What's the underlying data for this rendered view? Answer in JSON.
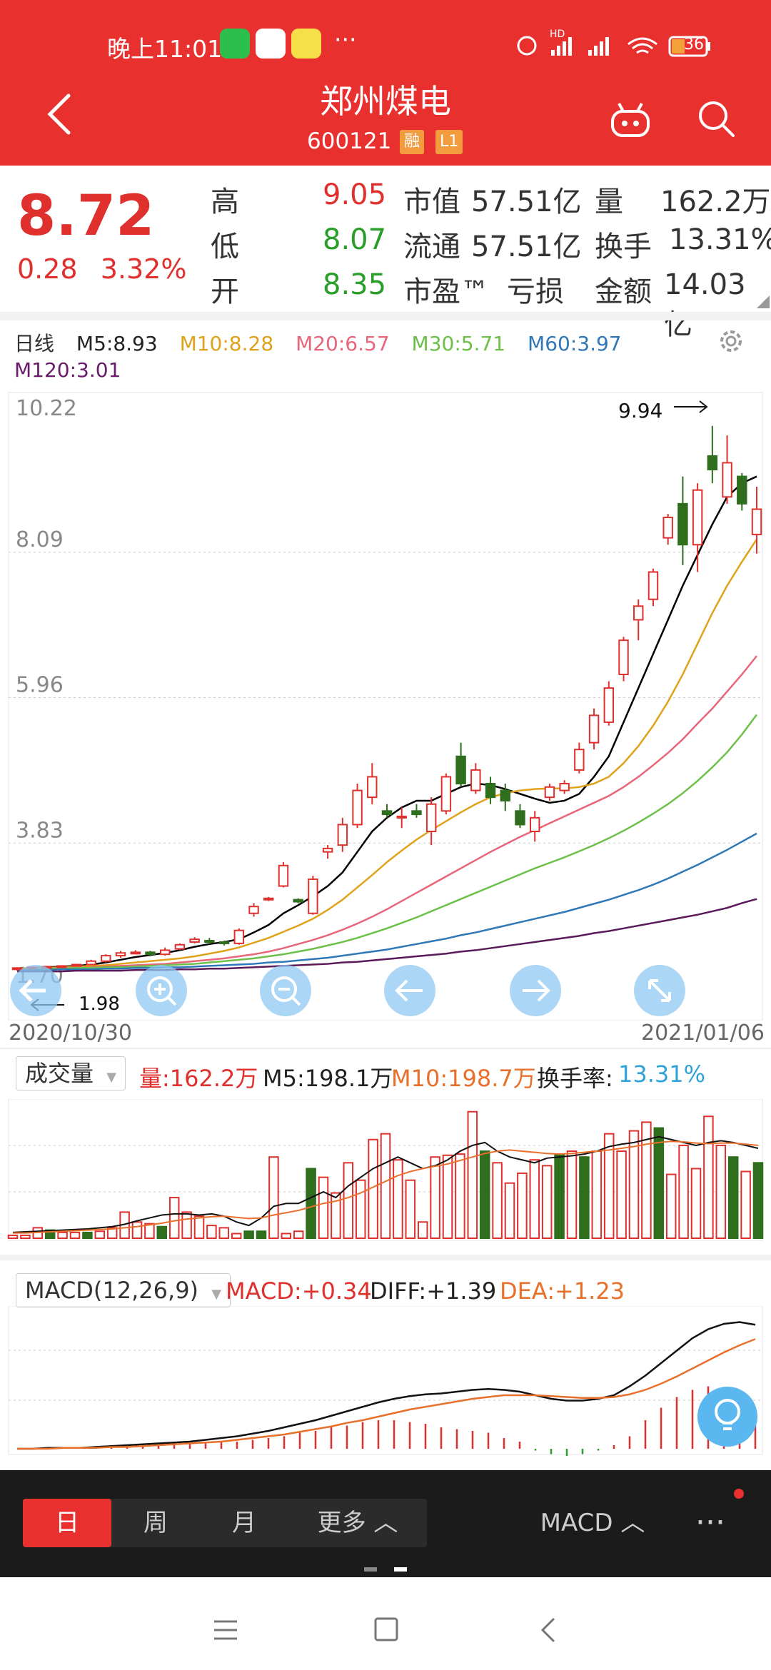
{
  "status": {
    "time": "晚上11:01",
    "dots": "···",
    "battery": "36",
    "net_label": "HD"
  },
  "header": {
    "title": "郑州煤电",
    "code": "600121",
    "tags": [
      "融",
      "L1"
    ]
  },
  "quote": {
    "price": "8.72",
    "change": "0.28",
    "change_pct": "3.32%",
    "rows": [
      {
        "l1": "高",
        "v1": "9.05",
        "c1": "red",
        "l2": "市值",
        "v2": "57.51亿",
        "l3": "量",
        "v3": "162.2万"
      },
      {
        "l1": "低",
        "v1": "8.07",
        "c1": "green",
        "l2": "流通",
        "v2": "57.51亿",
        "l3": "换手",
        "v3": "13.31%"
      },
      {
        "l1": "开",
        "v1": "8.35",
        "c1": "green",
        "l2": "市盈™",
        "v2": "亏损",
        "l3": "金额",
        "v3": "14.03亿"
      }
    ]
  },
  "ma_legend": {
    "period": "日线",
    "m5": "M5:8.93",
    "m10": "M10:8.28",
    "m20": "M20:6.57",
    "m30": "M30:5.71",
    "m60": "M60:3.97",
    "m120": "M120:3.01"
  },
  "colors": {
    "header": "#e8312f",
    "up": "#e0302d",
    "down": "#2e6e1d",
    "m5": "#000000",
    "m10": "#e0a21b",
    "m20": "#e8657a",
    "m30": "#6cc04a",
    "m60": "#2f78b8",
    "m120": "#5a1a5a"
  },
  "chart_data": [
    {
      "type": "candlestick",
      "y_ticks": [
        "10.22",
        "8.09",
        "5.96",
        "3.83",
        "1.70"
      ],
      "ylim": [
        1.7,
        10.22
      ],
      "annotations": {
        "high": "9.94",
        "low": "1.98"
      },
      "x_start": "2020/10/30",
      "x_end": "2021/01/06",
      "candles": [
        [
          1.98,
          2.0,
          1.96,
          2.01
        ],
        [
          2.0,
          2.01,
          1.99,
          2.02
        ],
        [
          2.01,
          2.02,
          2.0,
          2.03
        ],
        [
          2.02,
          2.03,
          2.01,
          2.04
        ],
        [
          2.03,
          2.05,
          2.02,
          2.06
        ],
        [
          2.05,
          2.1,
          2.04,
          2.12
        ],
        [
          2.1,
          2.18,
          2.08,
          2.2
        ],
        [
          2.18,
          2.22,
          2.15,
          2.25
        ],
        [
          2.22,
          2.23,
          2.2,
          2.26
        ],
        [
          2.23,
          2.2,
          2.17,
          2.25
        ],
        [
          2.2,
          2.26,
          2.18,
          2.3
        ],
        [
          2.28,
          2.34,
          2.26,
          2.36
        ],
        [
          2.38,
          2.42,
          2.36,
          2.45
        ],
        [
          2.4,
          2.38,
          2.35,
          2.44
        ],
        [
          2.38,
          2.36,
          2.33,
          2.4
        ],
        [
          2.36,
          2.55,
          2.34,
          2.58
        ],
        [
          2.8,
          2.9,
          2.75,
          2.95
        ],
        [
          3.0,
          3.02,
          2.98,
          3.04
        ],
        [
          3.2,
          3.5,
          3.18,
          3.55
        ],
        [
          3.0,
          2.97,
          2.95,
          3.02
        ],
        [
          2.8,
          3.3,
          2.78,
          3.35
        ],
        [
          3.7,
          3.75,
          3.6,
          3.8
        ],
        [
          3.8,
          4.1,
          3.7,
          4.2
        ],
        [
          4.1,
          4.6,
          4.05,
          4.7
        ],
        [
          4.5,
          4.8,
          4.4,
          5.0
        ],
        [
          4.3,
          4.25,
          4.2,
          4.4
        ],
        [
          4.2,
          4.22,
          4.05,
          4.35
        ],
        [
          4.3,
          4.25,
          4.2,
          4.4
        ],
        [
          4.0,
          4.4,
          3.8,
          4.5
        ],
        [
          4.3,
          4.8,
          4.25,
          4.85
        ],
        [
          5.1,
          4.7,
          4.65,
          5.3
        ],
        [
          4.6,
          4.9,
          4.55,
          5.0
        ],
        [
          4.7,
          4.5,
          4.4,
          4.8
        ],
        [
          4.6,
          4.45,
          4.3,
          4.7
        ],
        [
          4.3,
          4.1,
          4.05,
          4.4
        ],
        [
          4.0,
          4.2,
          3.85,
          4.3
        ],
        [
          4.5,
          4.65,
          4.45,
          4.7
        ],
        [
          4.6,
          4.7,
          4.55,
          4.75
        ],
        [
          4.9,
          5.2,
          4.85,
          5.3
        ],
        [
          5.3,
          5.7,
          5.2,
          5.8
        ],
        [
          5.6,
          6.1,
          5.55,
          6.2
        ],
        [
          6.3,
          6.8,
          6.2,
          6.85
        ],
        [
          7.1,
          7.3,
          6.8,
          7.4
        ],
        [
          7.4,
          7.8,
          7.3,
          7.85
        ],
        [
          8.3,
          8.6,
          8.2,
          8.65
        ],
        [
          8.8,
          8.2,
          7.9,
          9.2
        ],
        [
          8.2,
          9.0,
          7.8,
          9.1
        ],
        [
          9.5,
          9.3,
          9.1,
          9.94
        ],
        [
          8.9,
          9.4,
          8.8,
          9.8
        ],
        [
          9.2,
          8.8,
          8.7,
          9.25
        ],
        [
          8.35,
          8.72,
          8.07,
          9.05
        ]
      ],
      "ma": {
        "M5": [
          1.99,
          2.0,
          2.01,
          2.02,
          2.03,
          2.05,
          2.08,
          2.12,
          2.16,
          2.19,
          2.22,
          2.26,
          2.31,
          2.35,
          2.38,
          2.42,
          2.52,
          2.63,
          2.8,
          2.92,
          3.05,
          3.2,
          3.4,
          3.7,
          4.0,
          4.2,
          4.35,
          4.45,
          4.45,
          4.55,
          4.65,
          4.7,
          4.68,
          4.62,
          4.55,
          4.48,
          4.42,
          4.45,
          4.55,
          4.8,
          5.1,
          5.6,
          6.1,
          6.6,
          7.1,
          7.6,
          8.05,
          8.5,
          8.9,
          9.1,
          9.2
        ],
        "M10": [
          1.99,
          2.0,
          2.0,
          2.01,
          2.02,
          2.03,
          2.04,
          2.06,
          2.08,
          2.1,
          2.12,
          2.14,
          2.17,
          2.21,
          2.25,
          2.3,
          2.37,
          2.44,
          2.53,
          2.62,
          2.72,
          2.85,
          3.0,
          3.18,
          3.36,
          3.55,
          3.72,
          3.88,
          4.02,
          4.15,
          4.28,
          4.4,
          4.5,
          4.56,
          4.6,
          4.62,
          4.63,
          4.63,
          4.65,
          4.7,
          4.8,
          5.0,
          5.25,
          5.55,
          5.9,
          6.3,
          6.75,
          7.2,
          7.6,
          7.95,
          8.28
        ],
        "M20": [
          1.98,
          1.99,
          1.99,
          2.0,
          2.0,
          2.01,
          2.02,
          2.03,
          2.04,
          2.05,
          2.06,
          2.08,
          2.1,
          2.12,
          2.14,
          2.17,
          2.2,
          2.24,
          2.29,
          2.35,
          2.41,
          2.48,
          2.56,
          2.65,
          2.75,
          2.86,
          2.98,
          3.1,
          3.22,
          3.34,
          3.46,
          3.58,
          3.7,
          3.81,
          3.92,
          4.02,
          4.12,
          4.22,
          4.32,
          4.42,
          4.52,
          4.65,
          4.8,
          4.97,
          5.15,
          5.35,
          5.58,
          5.8,
          6.05,
          6.3,
          6.57
        ],
        "M30": [
          1.98,
          1.98,
          1.99,
          1.99,
          2.0,
          2.0,
          2.01,
          2.01,
          2.02,
          2.03,
          2.04,
          2.05,
          2.06,
          2.08,
          2.1,
          2.12,
          2.14,
          2.17,
          2.2,
          2.24,
          2.28,
          2.33,
          2.38,
          2.44,
          2.51,
          2.58,
          2.66,
          2.74,
          2.83,
          2.92,
          3.01,
          3.1,
          3.19,
          3.28,
          3.37,
          3.46,
          3.54,
          3.62,
          3.71,
          3.8,
          3.9,
          4.01,
          4.13,
          4.26,
          4.4,
          4.56,
          4.74,
          4.94,
          5.16,
          5.42,
          5.71
        ],
        "M60": [
          1.97,
          1.97,
          1.97,
          1.98,
          1.98,
          1.98,
          1.99,
          1.99,
          2.0,
          2.0,
          2.01,
          2.01,
          2.02,
          2.03,
          2.04,
          2.05,
          2.06,
          2.08,
          2.09,
          2.11,
          2.13,
          2.15,
          2.18,
          2.21,
          2.24,
          2.27,
          2.31,
          2.35,
          2.39,
          2.43,
          2.48,
          2.52,
          2.57,
          2.62,
          2.67,
          2.72,
          2.77,
          2.82,
          2.88,
          2.94,
          3.0,
          3.07,
          3.14,
          3.22,
          3.31,
          3.41,
          3.51,
          3.62,
          3.73,
          3.85,
          3.97
        ],
        "M120": [
          1.95,
          1.95,
          1.95,
          1.95,
          1.96,
          1.96,
          1.96,
          1.96,
          1.97,
          1.97,
          1.97,
          1.98,
          1.98,
          1.99,
          1.99,
          2.0,
          2.01,
          2.02,
          2.03,
          2.04,
          2.05,
          2.06,
          2.08,
          2.09,
          2.11,
          2.13,
          2.15,
          2.17,
          2.19,
          2.21,
          2.24,
          2.26,
          2.29,
          2.32,
          2.35,
          2.38,
          2.41,
          2.44,
          2.47,
          2.51,
          2.54,
          2.58,
          2.62,
          2.66,
          2.7,
          2.74,
          2.78,
          2.83,
          2.88,
          2.95,
          3.01
        ]
      }
    },
    {
      "type": "bar",
      "title": "成交量",
      "labels": {
        "vol": "量:162.2万",
        "m5": "M5:198.1万",
        "m10": "M10:198.7万",
        "turnover_label": "换手率:",
        "turnover": "13.31%"
      },
      "values": [
        5,
        5,
        18,
        14,
        10,
        10,
        10,
        12,
        18,
        45,
        28,
        25,
        20,
        70,
        45,
        38,
        22,
        18,
        8,
        12,
        12,
        140,
        8,
        12,
        120,
        105,
        78,
        130,
        100,
        170,
        180,
        135,
        100,
        28,
        140,
        143,
        145,
        218,
        150,
        130,
        95,
        112,
        135,
        125,
        145,
        150,
        140,
        150,
        180,
        150,
        185,
        200,
        190,
        110,
        160,
        120,
        210,
        160,
        140,
        115,
        130
      ],
      "down": [
        3,
        6,
        12,
        19,
        20,
        24,
        38,
        44,
        46,
        52,
        58,
        60
      ],
      "m5": [
        10,
        11,
        12,
        13,
        14,
        15,
        16,
        18,
        20,
        24,
        30,
        35,
        40,
        42,
        42,
        40,
        42,
        38,
        28,
        22,
        35,
        55,
        60,
        60,
        70,
        80,
        70,
        90,
        105,
        120,
        130,
        140,
        130,
        120,
        125,
        135,
        150,
        160,
        165,
        150,
        140,
        135,
        130,
        138,
        140,
        142,
        145,
        150,
        158,
        162,
        165,
        170,
        175,
        170,
        165,
        160,
        165,
        168,
        165,
        160,
        155
      ],
      "m10": [
        9,
        9,
        10,
        11,
        12,
        13,
        14,
        15,
        16,
        18,
        20,
        23,
        26,
        30,
        33,
        35,
        37,
        38,
        36,
        34,
        35,
        40,
        44,
        48,
        54,
        60,
        64,
        70,
        78,
        88,
        98,
        108,
        115,
        120,
        124,
        128,
        134,
        140,
        146,
        150,
        152,
        150,
        148,
        146,
        145,
        146,
        148,
        150,
        152,
        155,
        158,
        162,
        165,
        167,
        166,
        164,
        163,
        164,
        164,
        162,
        160
      ]
    },
    {
      "type": "line",
      "title": "MACD(12,26,9)",
      "labels": {
        "macd": "MACD:+0.34",
        "diff": "DIFF:+1.39",
        "dea": "DEA:+1.23"
      },
      "diff": [
        0,
        0,
        0.01,
        0.01,
        0.01,
        0.02,
        0.03,
        0.04,
        0.05,
        0.06,
        0.07,
        0.08,
        0.1,
        0.12,
        0.14,
        0.17,
        0.2,
        0.24,
        0.28,
        0.32,
        0.37,
        0.42,
        0.47,
        0.52,
        0.56,
        0.59,
        0.61,
        0.62,
        0.64,
        0.66,
        0.67,
        0.66,
        0.64,
        0.6,
        0.56,
        0.54,
        0.54,
        0.56,
        0.6,
        0.7,
        0.82,
        0.96,
        1.1,
        1.24,
        1.34,
        1.4,
        1.42,
        1.39
      ],
      "dea": [
        0,
        0,
        0,
        0.01,
        0.01,
        0.01,
        0.02,
        0.02,
        0.03,
        0.04,
        0.05,
        0.06,
        0.07,
        0.08,
        0.1,
        0.12,
        0.14,
        0.16,
        0.19,
        0.22,
        0.25,
        0.29,
        0.32,
        0.36,
        0.4,
        0.44,
        0.47,
        0.5,
        0.53,
        0.56,
        0.58,
        0.6,
        0.6,
        0.6,
        0.59,
        0.58,
        0.57,
        0.57,
        0.58,
        0.61,
        0.66,
        0.73,
        0.81,
        0.9,
        0.99,
        1.08,
        1.16,
        1.23
      ],
      "hist": [
        0,
        0,
        0.01,
        0.01,
        0.01,
        0.02,
        0.02,
        0.03,
        0.04,
        0.04,
        0.05,
        0.06,
        0.06,
        0.08,
        0.08,
        0.1,
        0.12,
        0.14,
        0.18,
        0.2,
        0.24,
        0.26,
        0.3,
        0.32,
        0.32,
        0.3,
        0.28,
        0.24,
        0.22,
        0.2,
        0.18,
        0.12,
        0.08,
        -0.02,
        -0.06,
        -0.08,
        -0.06,
        -0.02,
        0.04,
        0.14,
        0.32,
        0.46,
        0.58,
        0.66,
        0.7,
        0.64,
        0.52,
        0.34
      ]
    }
  ],
  "bottom_tabs": {
    "day": "日",
    "week": "周",
    "month": "月",
    "more": "更多 ︿",
    "indicator": "MACD ︿",
    "menu": "···"
  }
}
